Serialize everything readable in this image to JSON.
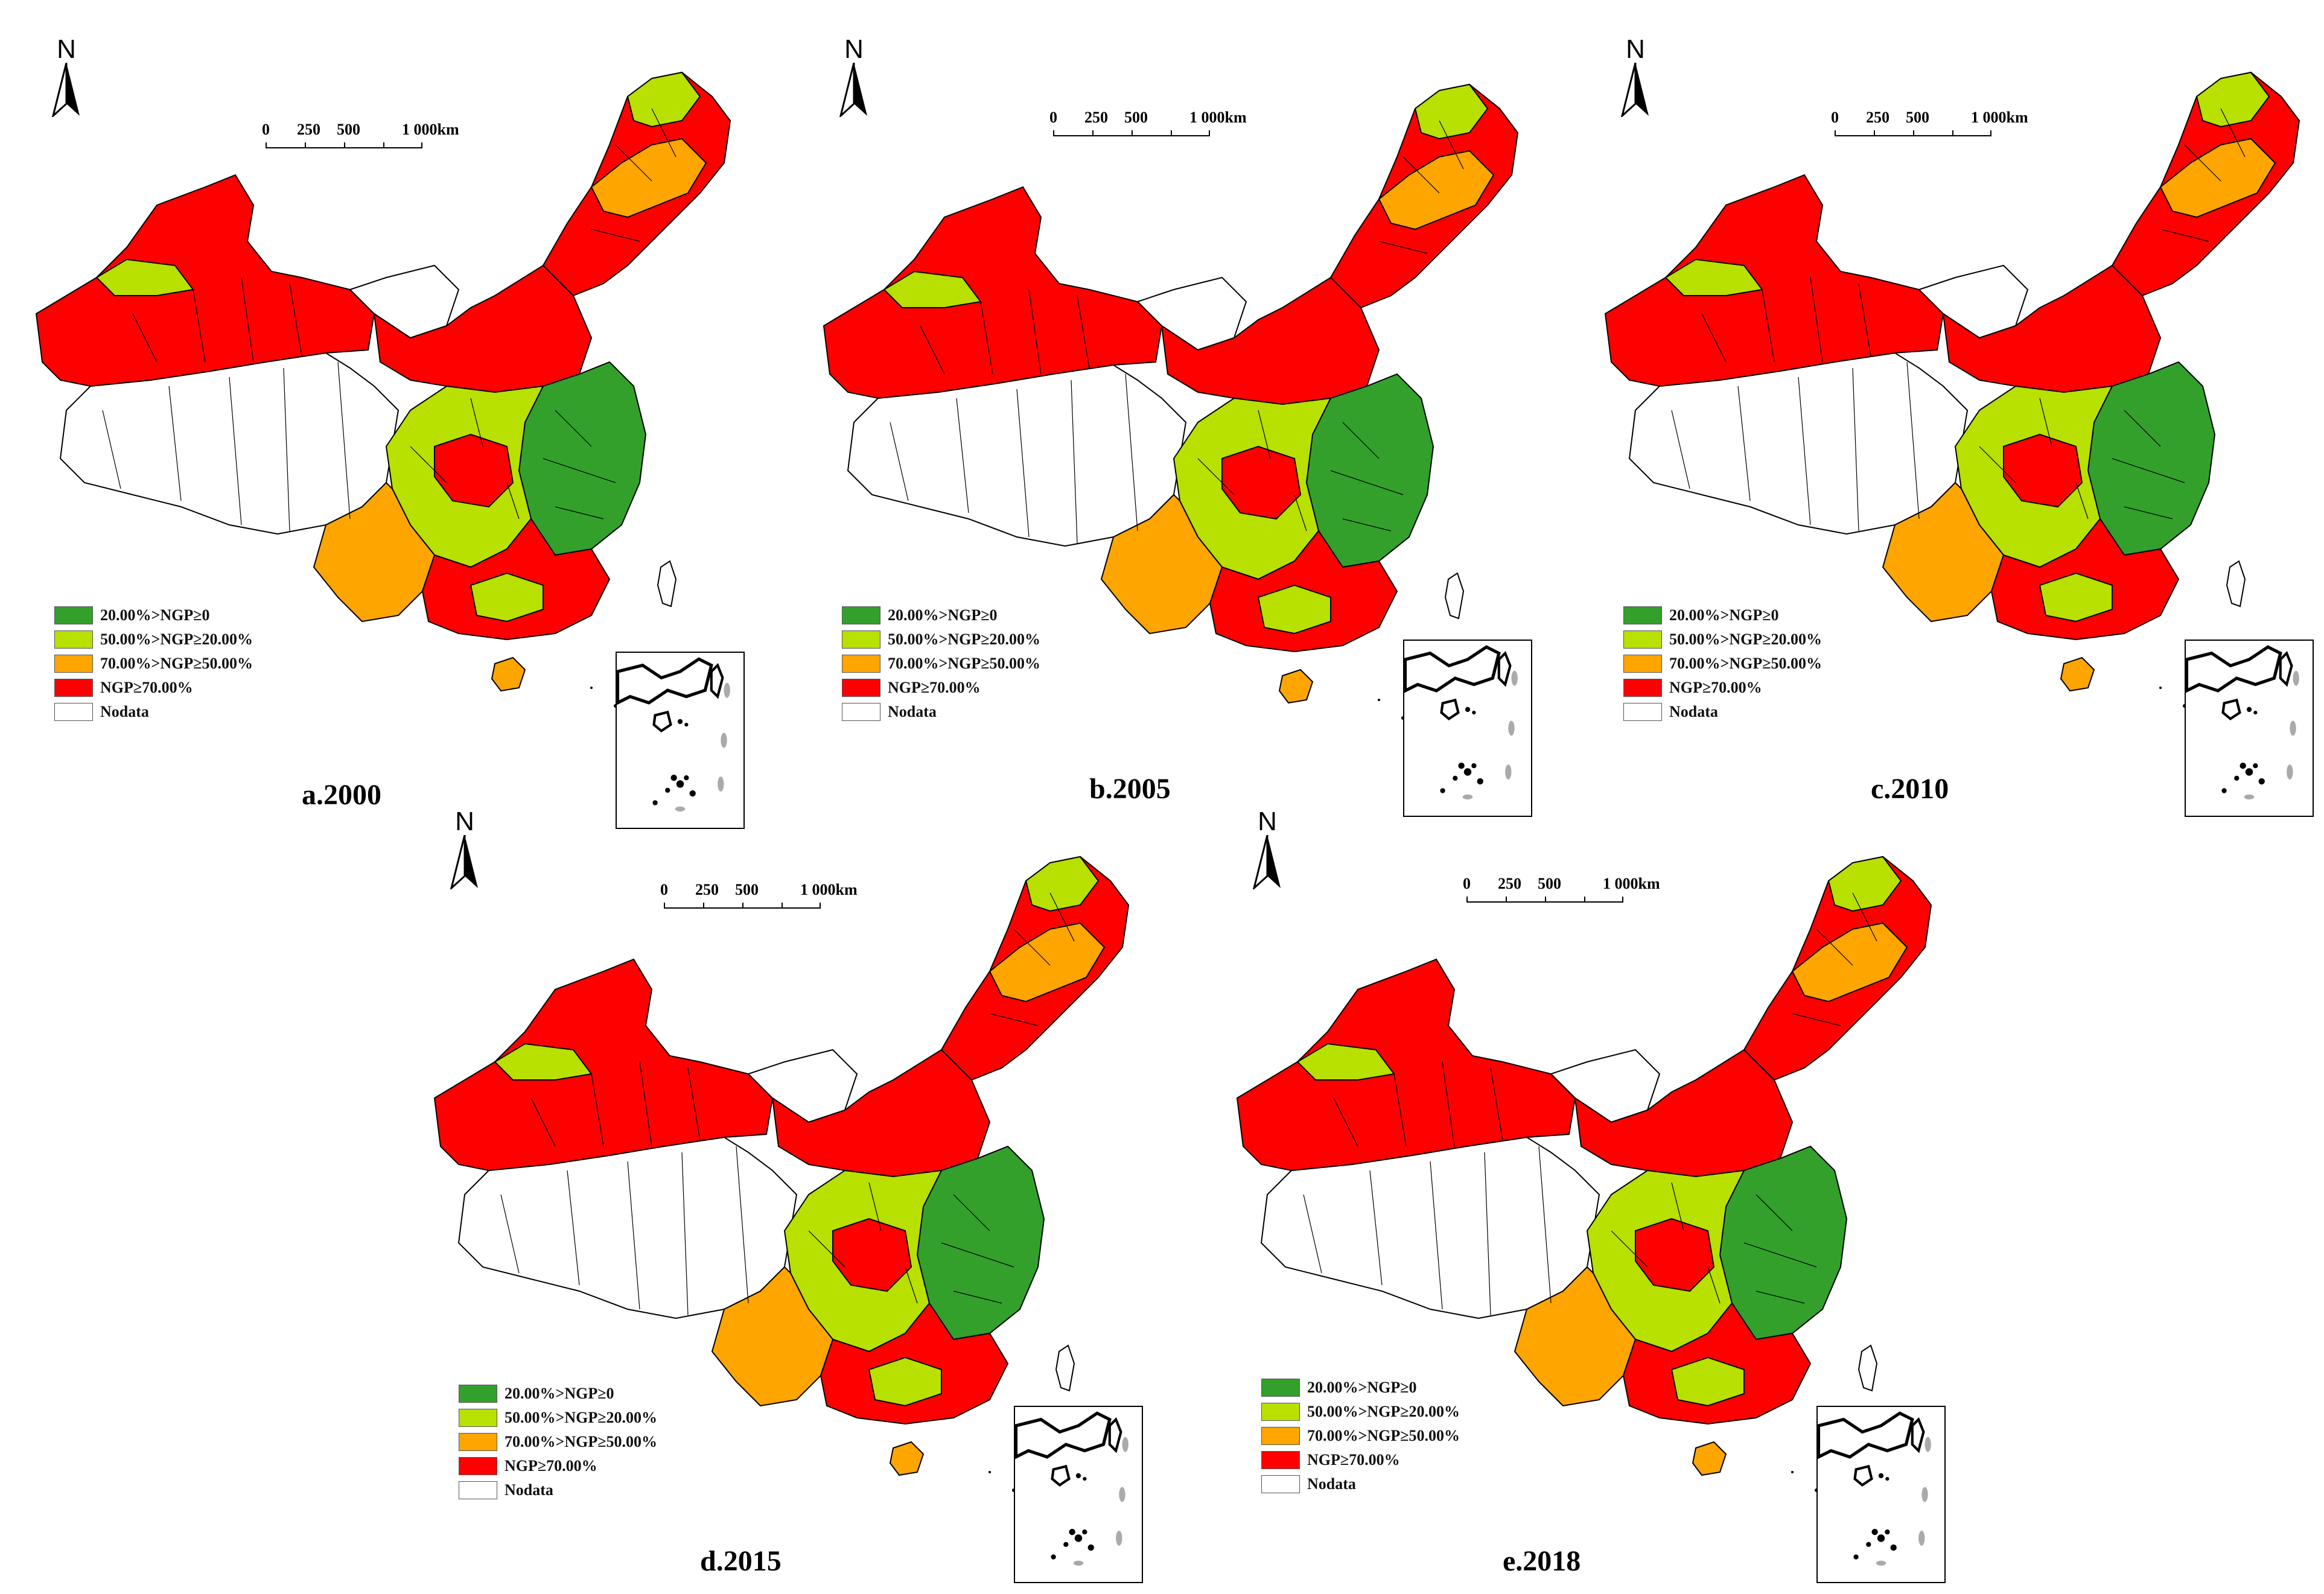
{
  "north_label": "N",
  "scale": {
    "labels": [
      "0",
      "250",
      "500",
      "1 000km"
    ]
  },
  "legend": [
    {
      "label": "20.00%>NGP≥0",
      "color": "#33a02c"
    },
    {
      "label": "50.00%>NGP≥20.00%",
      "color": "#b8e000"
    },
    {
      "label": "70.00%>NGP≥50.00%",
      "color": "#ffa500"
    },
    {
      "label": "NGP≥70.00%",
      "color": "#ff0000"
    },
    {
      "label": "Nodata",
      "color": "#ffffff"
    }
  ],
  "panels": [
    {
      "caption": "a.2000"
    },
    {
      "caption": "b.2005"
    },
    {
      "caption": "c.2010"
    },
    {
      "caption": "d.2015"
    },
    {
      "caption": "e.2018"
    }
  ]
}
